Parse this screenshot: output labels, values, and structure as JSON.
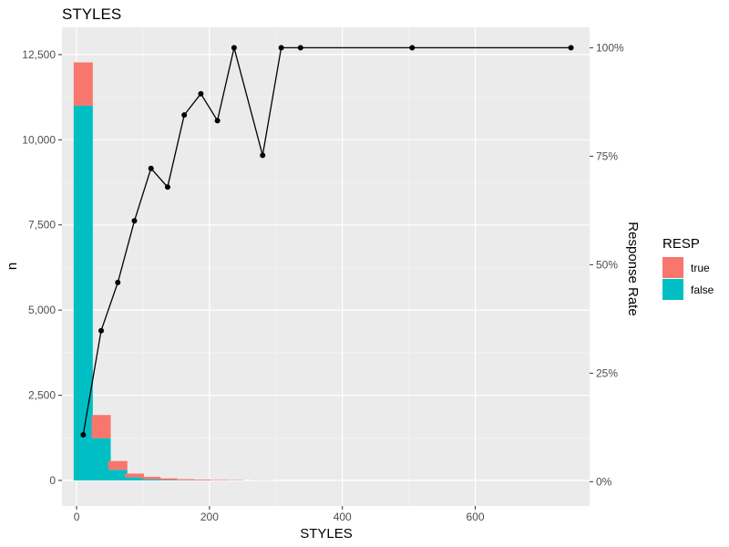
{
  "chart_data": {
    "type": "bar",
    "title": "STYLES",
    "xlabel": "STYLES",
    "ylabel": "n",
    "y2label": "Response Rate",
    "xlim": [
      -22,
      772
    ],
    "ylim": [
      -750,
      13300
    ],
    "y2lim": [
      -0.056,
      1.047
    ],
    "x_ticks": [
      0,
      200,
      400,
      600
    ],
    "y_ticks": [
      0,
      2500,
      5000,
      7500,
      10000,
      12500
    ],
    "y_tick_labels": [
      "0",
      "2,500",
      "5,000",
      "7,500",
      "10,000",
      "12,500"
    ],
    "y2_ticks": [
      0,
      0.25,
      0.5,
      0.75,
      1.0
    ],
    "y2_tick_labels": [
      "0%",
      "25%",
      "50%",
      "75%",
      "100%"
    ],
    "bar_width": 21,
    "grid": true,
    "legend": {
      "title": "RESP",
      "position": "right",
      "entries": [
        {
          "label": "true",
          "color": "#F8766D"
        },
        {
          "label": "false",
          "color": "#00BFC4"
        }
      ]
    },
    "bars": {
      "x": [
        10,
        37,
        62,
        87,
        112,
        137,
        162,
        187,
        212,
        237,
        280
      ],
      "false": [
        11000,
        1240,
        310,
        90,
        35,
        15,
        7,
        4,
        2,
        1,
        1
      ],
      "true": [
        1270,
        680,
        260,
        110,
        70,
        45,
        30,
        22,
        14,
        10,
        4
      ]
    },
    "line": {
      "name": "Response Rate",
      "x": [
        10,
        37,
        62,
        87,
        112,
        137,
        162,
        187,
        212,
        237,
        280,
        308,
        337,
        505,
        744
      ],
      "y": [
        0.108,
        0.348,
        0.459,
        0.601,
        0.722,
        0.679,
        0.845,
        0.894,
        0.832,
        1.0,
        0.752,
        1.0,
        1.0,
        1.0,
        1.0
      ]
    },
    "colors": {
      "true": "#F8766D",
      "false": "#00BFC4",
      "panel": "#EBEBEB",
      "grid_major": "#FFFFFF",
      "grid_minor": "#F5F5F5",
      "line": "#000000",
      "tick_text": "#4D4D4D"
    }
  }
}
